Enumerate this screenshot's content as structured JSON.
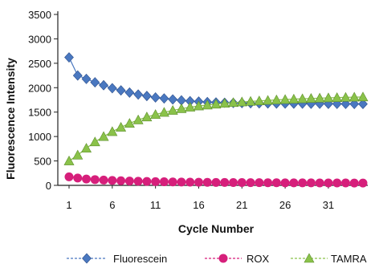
{
  "chart_data": {
    "type": "line",
    "title": "",
    "xlabel": "Cycle Number",
    "ylabel": "Fluorescence Intensity",
    "xlim": [
      1,
      35
    ],
    "ylim": [
      0,
      3500
    ],
    "x_ticks": [
      1,
      6,
      11,
      16,
      21,
      26,
      31
    ],
    "y_ticks": [
      0,
      500,
      1000,
      1500,
      2000,
      2500,
      3000,
      3500
    ],
    "grid": false,
    "legend_position": "bottom",
    "x": [
      1,
      2,
      3,
      4,
      5,
      6,
      7,
      8,
      9,
      10,
      11,
      12,
      13,
      14,
      15,
      16,
      17,
      18,
      19,
      20,
      21,
      22,
      23,
      24,
      25,
      26,
      27,
      28,
      29,
      30,
      31,
      32,
      33,
      34,
      35
    ],
    "series": [
      {
        "name": "Fluorescein",
        "color": "#4a78c0",
        "marker": "diamond",
        "values": [
          2620,
          2250,
          2180,
          2110,
          2050,
          1990,
          1945,
          1900,
          1860,
          1830,
          1800,
          1780,
          1760,
          1740,
          1725,
          1715,
          1705,
          1698,
          1692,
          1688,
          1685,
          1682,
          1680,
          1678,
          1676,
          1675,
          1674,
          1673,
          1672,
          1671,
          1670,
          1669,
          1668,
          1667,
          1666
        ]
      },
      {
        "name": "ROX",
        "color": "#d61f7b",
        "marker": "circle",
        "values": [
          175,
          150,
          130,
          118,
          108,
          100,
          94,
          88,
          84,
          80,
          76,
          73,
          70,
          68,
          66,
          64,
          62,
          60,
          59,
          58,
          57,
          56,
          55,
          54,
          53,
          52,
          52,
          51,
          51,
          50,
          50,
          49,
          49,
          48,
          48
        ]
      },
      {
        "name": "TAMRA",
        "color": "#8ac24a",
        "marker": "triangle",
        "values": [
          500,
          620,
          760,
          890,
          1000,
          1100,
          1190,
          1270,
          1340,
          1400,
          1450,
          1495,
          1535,
          1570,
          1600,
          1625,
          1645,
          1663,
          1680,
          1695,
          1708,
          1720,
          1730,
          1740,
          1750,
          1758,
          1766,
          1773,
          1780,
          1786,
          1792,
          1797,
          1802,
          1806,
          1810
        ]
      }
    ]
  }
}
